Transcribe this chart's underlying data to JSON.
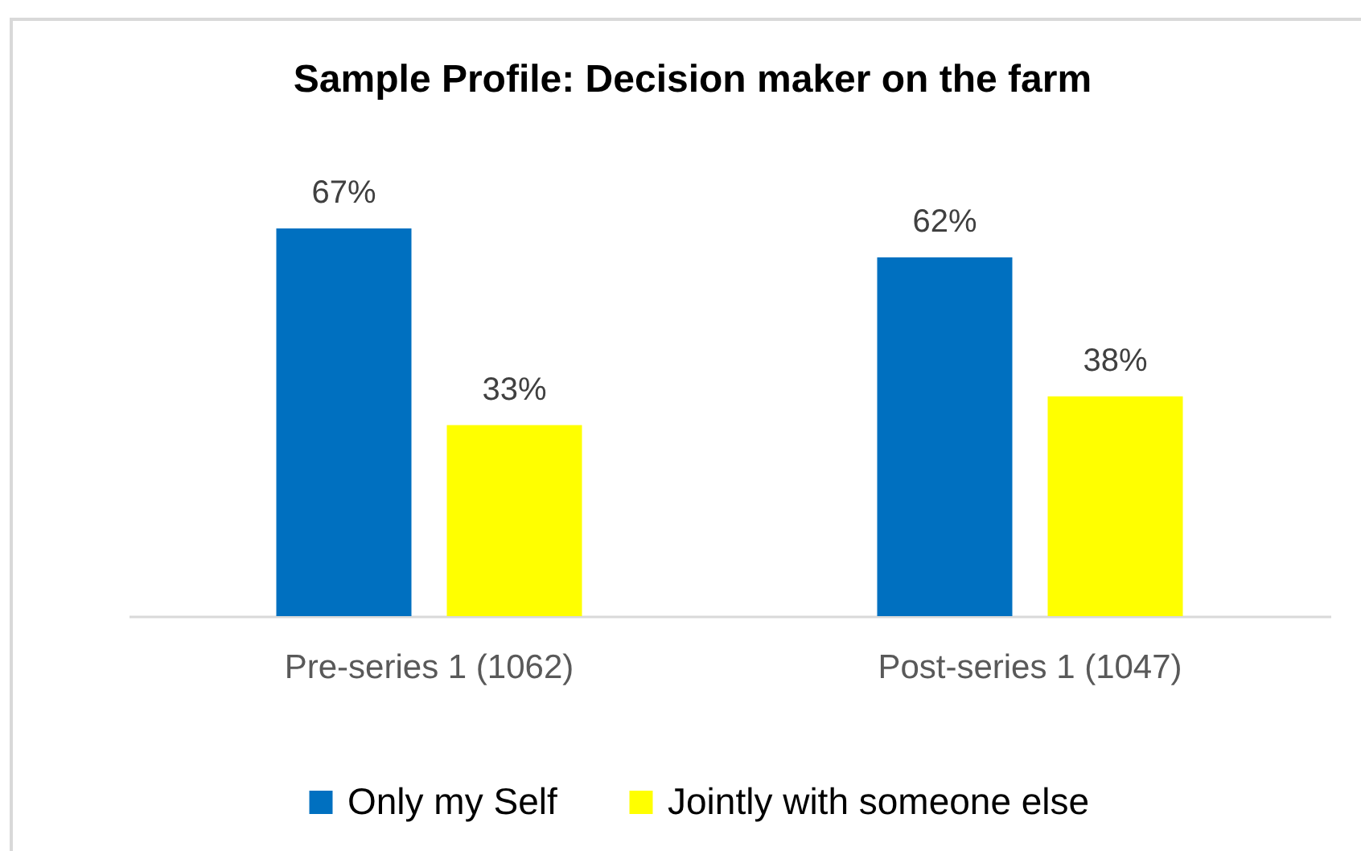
{
  "chart_data": {
    "type": "bar",
    "title": "Sample Profile: Decision maker on the farm",
    "categories": [
      "Pre-series 1 (1062)",
      "Post-series 1 (1047)"
    ],
    "series": [
      {
        "name": "Only my Self",
        "color": "#0070c0",
        "values": [
          67,
          62
        ],
        "value_labels": [
          "67%",
          "62%"
        ]
      },
      {
        "name": "Jointly with someone else",
        "color": "#ffff00",
        "values": [
          33,
          38
        ],
        "value_labels": [
          "33%",
          "38%"
        ]
      }
    ],
    "legend": "bottom"
  }
}
